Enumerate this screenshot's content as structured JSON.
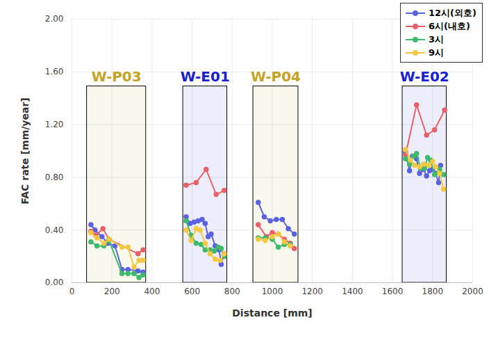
{
  "chart_data": {
    "type": "line",
    "marker": "circle",
    "x_label": "Distance [mm]",
    "y_label": "FAC rate [mm/year]",
    "xlim": [
      0,
      2000
    ],
    "xticks": [
      0,
      200,
      400,
      600,
      800,
      1000,
      1200,
      1400,
      1600,
      1800,
      2000
    ],
    "ylim": [
      0,
      2.0
    ],
    "yticks": [
      {
        "value": 0,
        "label": "0.00"
      },
      {
        "value": 0.4,
        "label": "0.40"
      },
      {
        "value": 0.8,
        "label": "0.80"
      },
      {
        "value": 1.2,
        "label": "1.20"
      },
      {
        "value": 1.6,
        "label": "1.60"
      },
      {
        "value": 2.0,
        "label": "2.00"
      }
    ],
    "grid": true,
    "legend": "top-right",
    "regions": [
      {
        "label": "W-P03",
        "x": [
          75,
          370
        ],
        "y": [
          0,
          1.49
        ],
        "color": "#c4a428"
      },
      {
        "label": "W-E01",
        "x": [
          555,
          775
        ],
        "y": [
          0,
          1.49
        ],
        "color": "#1a22d0"
      },
      {
        "label": "W-P04",
        "x": [
          905,
          1130
        ],
        "y": [
          0,
          1.49
        ],
        "color": "#c4a428"
      },
      {
        "label": "W-E02",
        "x": [
          1650,
          1870
        ],
        "y": [
          0,
          1.49
        ],
        "color": "#1a22d0"
      }
    ],
    "series": [
      {
        "name": "12시(외호)",
        "color": "#5b62e0",
        "x": [
          95,
          115,
          150,
          180,
          215,
          250,
          280,
          330,
          355,
          null,
          570,
          590,
          610,
          630,
          650,
          665,
          680,
          695,
          715,
          735,
          745,
          760,
          null,
          930,
          960,
          990,
          1020,
          1050,
          1080,
          1110,
          null,
          1665,
          1685,
          1700,
          1720,
          1735,
          1755,
          1770,
          1785,
          1800,
          1815,
          1830,
          1840
        ],
        "values": [
          0.44,
          0.4,
          0.35,
          0.3,
          0.28,
          0.1,
          0.1,
          0.09,
          0.08,
          null,
          0.5,
          0.45,
          0.46,
          0.47,
          0.48,
          0.45,
          0.35,
          0.37,
          0.28,
          0.25,
          0.14,
          0.22,
          null,
          0.61,
          0.5,
          0.47,
          0.48,
          0.48,
          0.41,
          0.37,
          null,
          0.99,
          0.85,
          0.96,
          0.94,
          0.83,
          0.86,
          0.81,
          0.85,
          0.86,
          0.83,
          0.76,
          0.89
        ]
      },
      {
        "name": "6시(내호)",
        "color": "#e8606a",
        "x": [
          95,
          120,
          155,
          185,
          330,
          355,
          null,
          570,
          620,
          670,
          720,
          760,
          null,
          930,
          970,
          1000,
          1030,
          1060,
          1090,
          1110,
          null,
          1665,
          1720,
          1770,
          1810,
          1860
        ],
        "values": [
          0.39,
          0.36,
          0.41,
          0.33,
          0.22,
          0.25,
          null,
          0.74,
          0.76,
          0.86,
          0.67,
          0.7,
          null,
          0.44,
          0.35,
          0.38,
          0.37,
          0.33,
          0.3,
          0.26,
          null,
          0.97,
          1.35,
          1.12,
          1.16,
          1.31
        ]
      },
      {
        "name": "3시",
        "color": "#3dbb6a",
        "x": [
          95,
          125,
          160,
          185,
          250,
          280,
          310,
          335,
          355,
          null,
          570,
          595,
          620,
          645,
          665,
          690,
          710,
          730,
          745,
          760,
          null,
          930,
          965,
          1000,
          1030,
          1060,
          1090,
          null,
          1665,
          1685,
          1705,
          1720,
          1740,
          1760,
          1775,
          1790,
          1810,
          1835,
          1855
        ],
        "values": [
          0.31,
          0.28,
          0.28,
          0.32,
          0.07,
          0.07,
          0.07,
          0.04,
          0.06,
          null,
          0.47,
          0.36,
          0.3,
          0.29,
          0.25,
          0.25,
          0.24,
          0.27,
          0.26,
          0.2,
          null,
          0.34,
          0.34,
          0.33,
          0.27,
          0.29,
          0.29,
          null,
          0.94,
          0.9,
          0.96,
          0.98,
          0.87,
          0.87,
          0.95,
          0.93,
          0.82,
          0.86,
          0.82
        ]
      },
      {
        "name": "9시",
        "color": "#f5c842",
        "x": [
          95,
          125,
          160,
          185,
          250,
          280,
          310,
          335,
          355,
          null,
          570,
          595,
          620,
          640,
          665,
          690,
          715,
          740,
          760,
          null,
          930,
          965,
          1000,
          1030,
          1060,
          1090,
          null,
          1665,
          1690,
          1710,
          1735,
          1755,
          1780,
          1800,
          1815,
          1835,
          1855
        ],
        "values": [
          0.38,
          0.34,
          0.3,
          0.33,
          0.27,
          0.27,
          0.12,
          0.17,
          0.17,
          null,
          0.4,
          0.32,
          0.41,
          0.4,
          0.3,
          0.22,
          0.18,
          0.17,
          0.22,
          null,
          0.33,
          0.32,
          0.35,
          0.37,
          0.31,
          0.28,
          null,
          1.01,
          0.93,
          0.89,
          0.88,
          0.9,
          0.89,
          0.92,
          0.88,
          0.83,
          0.71
        ]
      }
    ]
  }
}
